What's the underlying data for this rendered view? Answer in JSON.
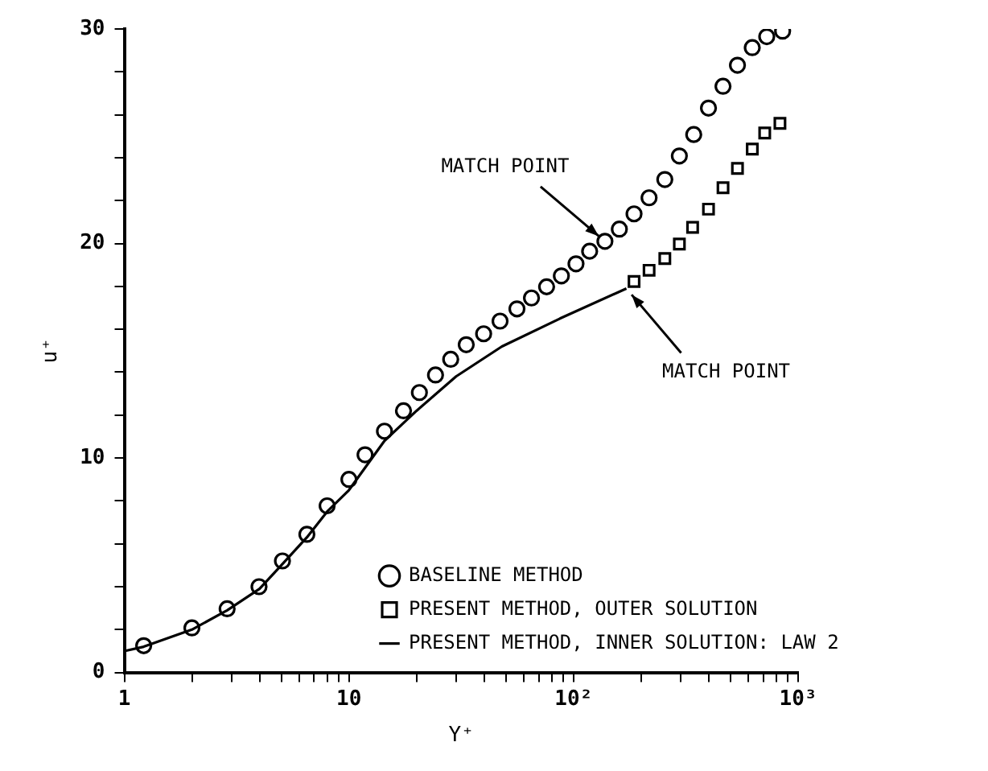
{
  "chart_data": {
    "type": "scatter",
    "xlabel": "Y⁺",
    "ylabel": "u⁺",
    "log": "x",
    "xlim": [
      1,
      1000
    ],
    "xticks": [
      1,
      {
        "value": 2,
        "label": null
      },
      {
        "value": 3,
        "label": null
      },
      {
        "value": 4,
        "label": null
      },
      {
        "value": 5,
        "label": null
      },
      {
        "value": 6,
        "label": null
      },
      {
        "value": 7,
        "label": null
      },
      {
        "value": 8,
        "label": null
      },
      {
        "value": 9,
        "label": null
      },
      10,
      {
        "value": 20,
        "label": null
      },
      {
        "value": 30,
        "label": null
      },
      {
        "value": 40,
        "label": null
      },
      {
        "value": 50,
        "label": null
      },
      {
        "value": 60,
        "label": null
      },
      {
        "value": 70,
        "label": null
      },
      {
        "value": 80,
        "label": null
      },
      {
        "value": 90,
        "label": null
      },
      {
        "value": 100,
        "label": "10²"
      },
      {
        "value": 200,
        "label": null
      },
      {
        "value": 300,
        "label": null
      },
      {
        "value": 400,
        "label": null
      },
      {
        "value": 500,
        "label": null
      },
      {
        "value": 600,
        "label": null
      },
      {
        "value": 700,
        "label": null
      },
      {
        "value": 800,
        "label": null
      },
      {
        "value": 900,
        "label": null
      },
      {
        "value": 1000,
        "label": "10³"
      }
    ],
    "ylim": [
      0,
      30
    ],
    "yticks": [
      0,
      {
        "value": 2,
        "label": null
      },
      {
        "value": 4,
        "label": null
      },
      {
        "value": 6,
        "label": null
      },
      {
        "value": 8,
        "label": null
      },
      10,
      {
        "value": 12,
        "label": null
      },
      {
        "value": 14,
        "label": null
      },
      {
        "value": 16,
        "label": null
      },
      {
        "value": 18,
        "label": null
      },
      20,
      {
        "value": 22,
        "label": null
      },
      {
        "value": 24,
        "label": null
      },
      {
        "value": 26,
        "label": null
      },
      {
        "value": 28,
        "label": null
      },
      30
    ],
    "grid": false,
    "legend": "bottom right",
    "series": [
      {
        "name": "BASELINE METHOD",
        "type": "scatter",
        "marker": "circle",
        "color": "#000000",
        "x": [
          1.22,
          2.0,
          2.87,
          3.98,
          5.06,
          6.5,
          8.0,
          10,
          11.8,
          14.4,
          17.5,
          20.6,
          24.3,
          28.4,
          33.3,
          39.8,
          47.1,
          56.0,
          65.0,
          75.9,
          88.3,
          102.6,
          118,
          138,
          160,
          186,
          217,
          255,
          296,
          343,
          399,
          463,
          537,
          625,
          725,
          853
        ],
        "values": [
          1.25,
          2.08,
          2.97,
          4.0,
          5.2,
          6.44,
          7.77,
          9.0,
          10.15,
          11.25,
          12.2,
          13.05,
          13.87,
          14.6,
          15.28,
          15.79,
          16.38,
          16.95,
          17.46,
          17.98,
          18.49,
          19.05,
          19.64,
          20.1,
          20.67,
          21.38,
          22.13,
          22.98,
          24.08,
          25.08,
          26.31,
          27.33,
          28.31,
          29.13,
          29.64,
          29.9
        ]
      },
      {
        "name": "PRESENT METHOD, OUTER SOLUTION",
        "type": "scatter",
        "marker": "square",
        "color": "#000000",
        "x": [
          186,
          217,
          255,
          296,
          339,
          399,
          463,
          537,
          625,
          710,
          830
        ],
        "values": [
          18.23,
          18.75,
          19.3,
          19.97,
          20.75,
          21.6,
          22.6,
          23.5,
          24.4,
          25.15,
          25.6
        ]
      },
      {
        "name": "PRESENT METHOD, INNER SOLUTION: LAW 2",
        "type": "line",
        "marker": "none",
        "line_style": "solid",
        "color": "#000000",
        "x": [
          1,
          1.22,
          2,
          2.87,
          4,
          5,
          6.5,
          8,
          10,
          14.4,
          20,
          30,
          48,
          87,
          172
        ],
        "values": [
          1.0,
          1.2,
          2.0,
          2.9,
          3.9,
          5.0,
          6.3,
          7.5,
          8.5,
          10.8,
          12.2,
          13.8,
          15.2,
          16.5,
          17.9
        ]
      }
    ],
    "annotations": [
      {
        "text": "MATCH POINT",
        "x": 138,
        "y": 20.1
      },
      {
        "text": "MATCH POINT",
        "x": 172,
        "y": 17.9
      }
    ]
  }
}
